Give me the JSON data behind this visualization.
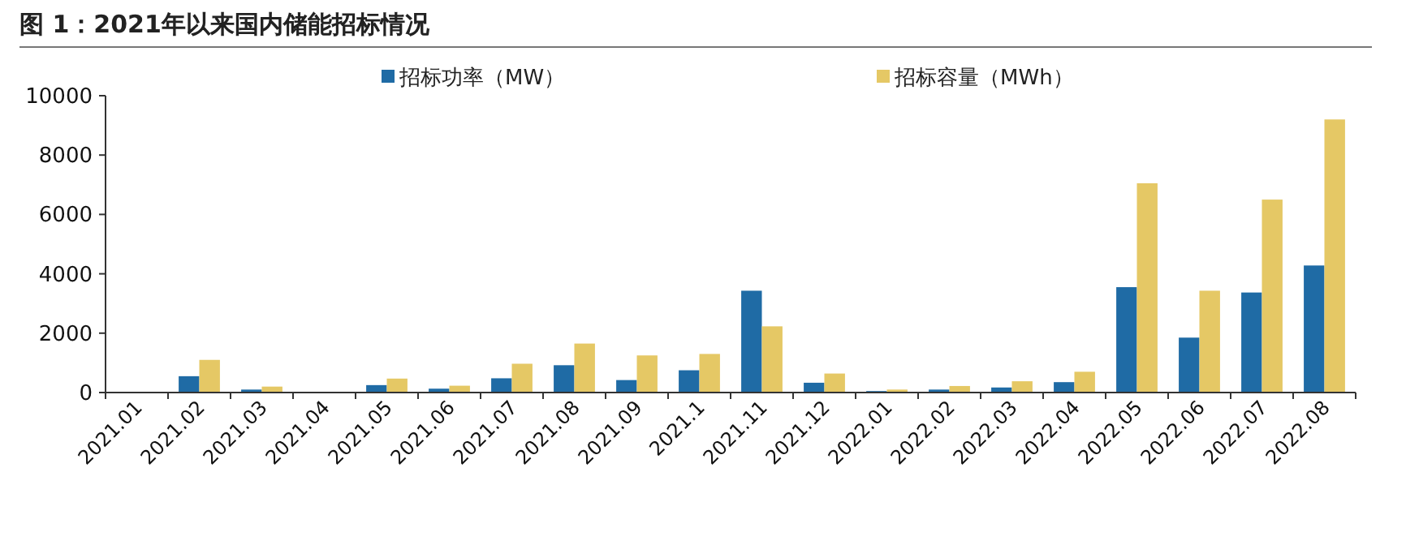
{
  "chart_data": {
    "type": "bar",
    "title": "图 1：2021年以来国内储能招标情况",
    "categories": [
      "2021.01",
      "2021.02",
      "2021.03",
      "2021.04",
      "2021.05",
      "2021.06",
      "2021.07",
      "2021.08",
      "2021.09",
      "2021.1",
      "2021.11",
      "2021.12",
      "2022.01",
      "2022.02",
      "2022.03",
      "2022.04",
      "2022.05",
      "2022.06",
      "2022.07",
      "2022.08"
    ],
    "series": [
      {
        "name": "招标功率（MW）",
        "color": "#1f6ba5",
        "values": [
          0,
          550,
          100,
          0,
          250,
          130,
          480,
          920,
          420,
          750,
          3430,
          330,
          50,
          100,
          170,
          350,
          3550,
          1850,
          3370,
          4280
        ]
      },
      {
        "name": "招标容量（MWh）",
        "color": "#e5c865",
        "values": [
          0,
          1100,
          200,
          0,
          470,
          230,
          970,
          1650,
          1250,
          1300,
          2230,
          640,
          100,
          220,
          380,
          700,
          7050,
          3430,
          6500,
          9200
        ]
      }
    ],
    "ylim": [
      0,
      10000
    ],
    "yticks": [
      0,
      2000,
      4000,
      6000,
      8000,
      10000
    ],
    "grid": false,
    "legend": "top"
  }
}
